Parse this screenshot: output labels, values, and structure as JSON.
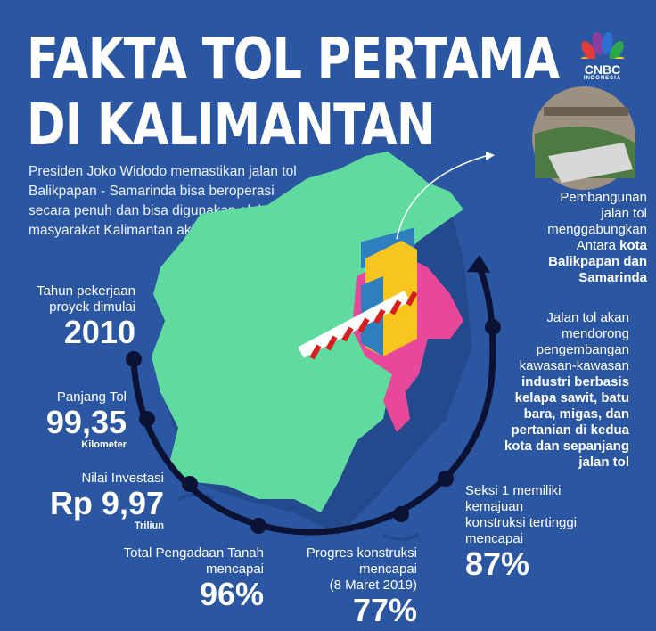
{
  "title": {
    "line1": "FAKTA TOL PERTAMA",
    "line2": "DI KALIMANTAN"
  },
  "logo": {
    "name": "CNBC",
    "sub": "INDONESIA",
    "icon": "peacock-logo-icon"
  },
  "intro": "Presiden Joko Widodo memastikan jalan tol Balikpapan - Samarinda bisa beroperasi secara penuh dan bisa digunakan oleh masyarakat Kalimantan akhir tahun ini.",
  "facts": {
    "start": {
      "label1": "Tahun pekerjaan",
      "label2": "proyek dimulai",
      "value": "2010"
    },
    "length": {
      "label": "Panjang Tol",
      "value": "99,35",
      "unit": "Kilometer"
    },
    "investment": {
      "label": "Nilai Investasi",
      "value": "Rp 9,97",
      "unit": "Triliun"
    },
    "land": {
      "label1": "Total Pengadaan Tanah",
      "label2": "mencapai",
      "value": "96%"
    },
    "progress": {
      "label1": "Progres konstruksi",
      "label2": "mencapai",
      "label3": "(8 Maret 2019)",
      "value": "77%"
    },
    "section1": {
      "label1": "Seksi 1 memiliki",
      "label2": "kemajuan",
      "label3": "konstruksi tertinggi",
      "label4": "mencapai",
      "value": "87%"
    }
  },
  "connect": {
    "l1": "Pembangunan",
    "l2": "jalan tol",
    "l3": "menggabungkan",
    "l4a": "Antara ",
    "l4b": "kota",
    "l5": "Balikpapan dan",
    "l6": "Samarinda"
  },
  "impact": {
    "normal": [
      "Jalan tol akan",
      "mendorong",
      "pengembangan",
      "kawasan-kawasan"
    ],
    "bold": [
      "industri berbasis",
      "kelapa sawit, batu",
      "bara, migas, dan",
      "pertanian di kedua",
      "kota dan sepanjang",
      "jalan tol"
    ]
  },
  "colors": {
    "background": "#2b56a1",
    "map_green": "#5fdba0",
    "map_pink": "#e8489a",
    "arc": "#0b1233",
    "gate_yellow": "#f7c51e"
  }
}
